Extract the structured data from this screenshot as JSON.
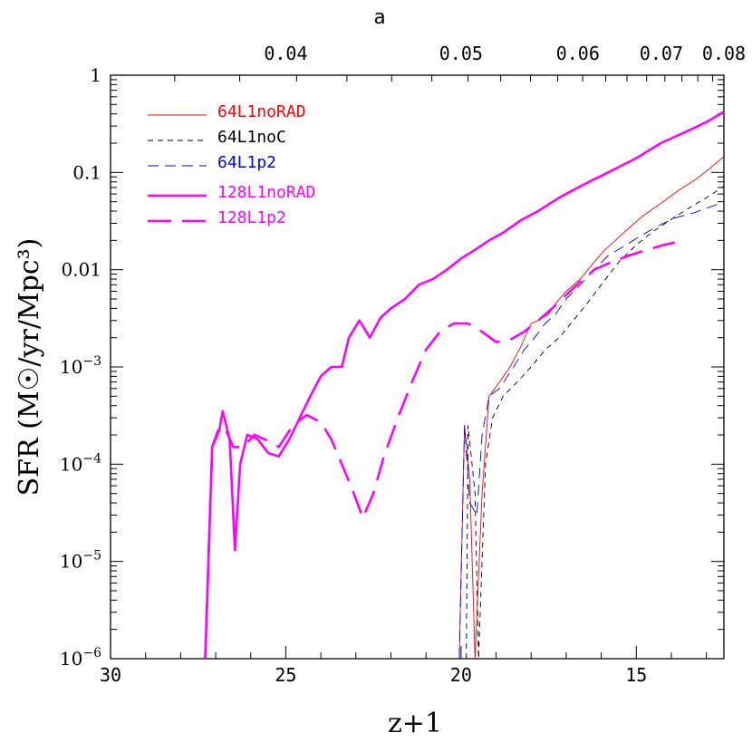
{
  "chart_data": {
    "type": "line",
    "top_axis_label": "a",
    "top_ticks": [
      "0.04",
      "0.05",
      "0.06",
      "0.07",
      "0.08"
    ],
    "xlabel": "z+1",
    "x_ticks": [
      "30",
      "25",
      "20",
      "15"
    ],
    "xlim": [
      30,
      12.5
    ],
    "ylabel": "SFR (M☉/yr/Mpc³)",
    "ylim": [
      1e-06,
      1
    ],
    "yscale": "log",
    "y_ticks": [
      {
        "value": 1,
        "label": "1",
        "exp": ""
      },
      {
        "value": 0.1,
        "label": "0.1",
        "exp": ""
      },
      {
        "value": 0.01,
        "label": "0.01",
        "exp": ""
      },
      {
        "value": 0.001,
        "label": "10",
        "exp": "−3"
      },
      {
        "value": 0.0001,
        "label": "10",
        "exp": "−4"
      },
      {
        "value": 1e-05,
        "label": "10",
        "exp": "−5"
      },
      {
        "value": 1e-06,
        "label": "10",
        "exp": "−6"
      }
    ],
    "legend_position": "top-left",
    "series": [
      {
        "name": "64L1noRAD",
        "color": "#ff0000",
        "dash": "none",
        "width": 0.9,
        "points": [
          [
            20.05,
            1e-06
          ],
          [
            19.9,
            0.00025
          ],
          [
            19.75,
            7e-05
          ],
          [
            19.6,
            1e-06
          ],
          [
            19.4,
            5e-05
          ],
          [
            19.2,
            0.0005
          ],
          [
            18.9,
            0.0007
          ],
          [
            18.6,
            0.001
          ],
          [
            18.3,
            0.0016
          ],
          [
            18.0,
            0.0028
          ],
          [
            17.8,
            0.003
          ],
          [
            17.5,
            0.0035
          ],
          [
            17.3,
            0.0045
          ],
          [
            17.0,
            0.006
          ],
          [
            16.6,
            0.008
          ],
          [
            16.2,
            0.012
          ],
          [
            15.9,
            0.016
          ],
          [
            15.6,
            0.02
          ],
          [
            15.2,
            0.027
          ],
          [
            14.8,
            0.036
          ],
          [
            14.3,
            0.048
          ],
          [
            13.8,
            0.065
          ],
          [
            13.3,
            0.085
          ],
          [
            12.9,
            0.11
          ],
          [
            12.5,
            0.145
          ]
        ]
      },
      {
        "name": "64L1noC",
        "color": "#000000",
        "dash": "6,5",
        "width": 0.9,
        "points": [
          [
            19.85,
            1e-06
          ],
          [
            19.8,
            0.00025
          ],
          [
            19.6,
            5e-05
          ],
          [
            19.5,
            1e-06
          ],
          [
            19.3,
            0.0001
          ],
          [
            19.1,
            0.0003
          ],
          [
            18.8,
            0.0005
          ],
          [
            18.4,
            0.0007
          ],
          [
            18.0,
            0.001
          ],
          [
            17.6,
            0.0015
          ],
          [
            17.2,
            0.002
          ],
          [
            16.8,
            0.003
          ],
          [
            16.4,
            0.0045
          ],
          [
            16.0,
            0.007
          ],
          [
            15.5,
            0.012
          ],
          [
            15.0,
            0.018
          ],
          [
            14.5,
            0.025
          ],
          [
            14.0,
            0.033
          ],
          [
            13.5,
            0.043
          ],
          [
            13.0,
            0.055
          ],
          [
            12.5,
            0.072
          ]
        ]
      },
      {
        "name": "64L1p2",
        "color": "#0000ff",
        "dash": "12,7",
        "width": 0.9,
        "points": [
          [
            20.05,
            1e-06
          ],
          [
            19.9,
            0.00025
          ],
          [
            19.75,
            4e-05
          ],
          [
            19.55,
            3e-05
          ],
          [
            19.4,
            0.0002
          ],
          [
            19.2,
            0.0005
          ],
          [
            18.9,
            0.0006
          ],
          [
            18.5,
            0.001
          ],
          [
            18.2,
            0.0015
          ],
          [
            17.9,
            0.002
          ],
          [
            17.6,
            0.0028
          ],
          [
            17.3,
            0.0035
          ],
          [
            17.0,
            0.005
          ],
          [
            16.6,
            0.007
          ],
          [
            16.2,
            0.01
          ],
          [
            15.8,
            0.014
          ],
          [
            15.4,
            0.017
          ],
          [
            14.9,
            0.022
          ],
          [
            14.4,
            0.028
          ],
          [
            13.9,
            0.034
          ],
          [
            13.4,
            0.038
          ],
          [
            12.9,
            0.044
          ],
          [
            12.5,
            0.05
          ]
        ]
      },
      {
        "name": "128L1noRAD",
        "color": "#ff00ff",
        "dash": "none",
        "width": 2.6,
        "points": [
          [
            27.3,
            1e-06
          ],
          [
            27.1,
            0.00015
          ],
          [
            26.9,
            0.00022
          ],
          [
            26.8,
            0.00035
          ],
          [
            26.6,
            0.00018
          ],
          [
            26.45,
            1.3e-05
          ],
          [
            26.3,
            0.0001
          ],
          [
            26.1,
            0.0002
          ],
          [
            25.8,
            0.00018
          ],
          [
            25.5,
            0.00013
          ],
          [
            25.2,
            0.00012
          ],
          [
            24.9,
            0.00018
          ],
          [
            24.6,
            0.0003
          ],
          [
            24.3,
            0.0005
          ],
          [
            24.0,
            0.0008
          ],
          [
            23.7,
            0.001
          ],
          [
            23.4,
            0.001
          ],
          [
            23.2,
            0.002
          ],
          [
            22.9,
            0.003
          ],
          [
            22.6,
            0.002
          ],
          [
            22.3,
            0.0032
          ],
          [
            22.0,
            0.004
          ],
          [
            21.6,
            0.005
          ],
          [
            21.2,
            0.007
          ],
          [
            20.8,
            0.008
          ],
          [
            20.4,
            0.01
          ],
          [
            20.0,
            0.013
          ],
          [
            19.6,
            0.016
          ],
          [
            19.2,
            0.02
          ],
          [
            18.8,
            0.024
          ],
          [
            18.3,
            0.032
          ],
          [
            17.8,
            0.04
          ],
          [
            17.2,
            0.055
          ],
          [
            16.5,
            0.075
          ],
          [
            15.8,
            0.1
          ],
          [
            15.0,
            0.14
          ],
          [
            14.3,
            0.2
          ],
          [
            13.6,
            0.26
          ],
          [
            13.0,
            0.33
          ],
          [
            12.5,
            0.42
          ]
        ]
      },
      {
        "name": "128L1p2",
        "color": "#ff00ff",
        "dash": "26,12",
        "width": 2.6,
        "points": [
          [
            27.3,
            1e-06
          ],
          [
            27.1,
            0.00015
          ],
          [
            26.9,
            0.00024
          ],
          [
            26.7,
            0.00022
          ],
          [
            26.5,
            0.00015
          ],
          [
            26.2,
            0.00015
          ],
          [
            25.9,
            0.0002
          ],
          [
            25.6,
            0.00018
          ],
          [
            25.2,
            0.00015
          ],
          [
            24.8,
            0.00025
          ],
          [
            24.4,
            0.00032
          ],
          [
            24.0,
            0.00027
          ],
          [
            23.7,
            0.00018
          ],
          [
            23.4,
            0.0001
          ],
          [
            23.1,
            5.5e-05
          ],
          [
            22.8,
            2.8e-05
          ],
          [
            22.5,
            5e-05
          ],
          [
            22.2,
            0.00012
          ],
          [
            21.8,
            0.0003
          ],
          [
            21.4,
            0.0007
          ],
          [
            21.0,
            0.0015
          ],
          [
            20.6,
            0.0023
          ],
          [
            20.2,
            0.0028
          ],
          [
            19.8,
            0.0028
          ],
          [
            19.4,
            0.0023
          ],
          [
            19.0,
            0.0018
          ],
          [
            18.6,
            0.0019
          ],
          [
            18.2,
            0.0023
          ],
          [
            17.8,
            0.003
          ],
          [
            17.4,
            0.004
          ],
          [
            17.0,
            0.0055
          ],
          [
            16.6,
            0.0075
          ],
          [
            16.2,
            0.01
          ],
          [
            15.7,
            0.012
          ],
          [
            15.2,
            0.014
          ],
          [
            14.7,
            0.016
          ],
          [
            14.2,
            0.018
          ],
          [
            13.9,
            0.019
          ]
        ]
      }
    ]
  }
}
